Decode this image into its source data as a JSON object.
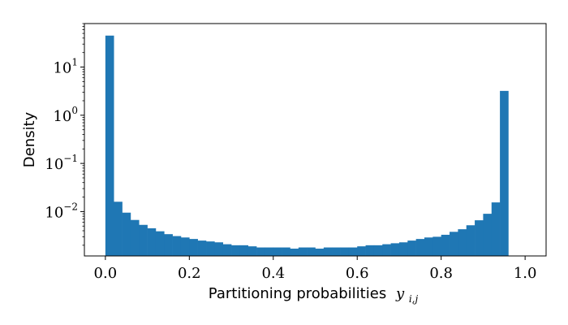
{
  "chart_data": {
    "type": "bar",
    "subtype": "histogram",
    "title": "",
    "xlabel": "Partitioning probabilities",
    "xlabel_math_base": "y",
    "xlabel_math_sub": "i,j",
    "ylabel": "Density",
    "yscale": "log",
    "xlim": [
      -0.05,
      1.05
    ],
    "ylim": [
      0.0012,
      80
    ],
    "bar_color": "#1f77b4",
    "x_ticks": [
      {
        "value": 0.0,
        "label": "0.0"
      },
      {
        "value": 0.2,
        "label": "0.2"
      },
      {
        "value": 0.4,
        "label": "0.4"
      },
      {
        "value": 0.6,
        "label": "0.6"
      },
      {
        "value": 0.8,
        "label": "0.8"
      },
      {
        "value": 1.0,
        "label": "1.0"
      }
    ],
    "y_ticks": [
      {
        "value": 10,
        "base": "10",
        "exp": "1"
      },
      {
        "value": 1,
        "base": "10",
        "exp": "0"
      },
      {
        "value": 0.1,
        "base": "10",
        "exp": "−1"
      },
      {
        "value": 0.01,
        "base": "10",
        "exp": "−2"
      }
    ],
    "bin_start": 0.0,
    "bin_width": 0.02,
    "values": [
      45,
      0.016,
      0.0095,
      0.0067,
      0.0053,
      0.0045,
      0.0039,
      0.0034,
      0.0031,
      0.0029,
      0.0027,
      0.0025,
      0.0024,
      0.0023,
      0.0021,
      0.002,
      0.002,
      0.0019,
      0.0018,
      0.0018,
      0.0018,
      0.0018,
      0.0017,
      0.0018,
      0.0018,
      0.0017,
      0.0018,
      0.0018,
      0.0018,
      0.0018,
      0.0019,
      0.002,
      0.002,
      0.0021,
      0.0022,
      0.0023,
      0.0025,
      0.0027,
      0.0029,
      0.003,
      0.0033,
      0.0038,
      0.0043,
      0.0052,
      0.0066,
      0.009,
      0.0155,
      3.2
    ],
    "grid": false,
    "legend": "none"
  }
}
